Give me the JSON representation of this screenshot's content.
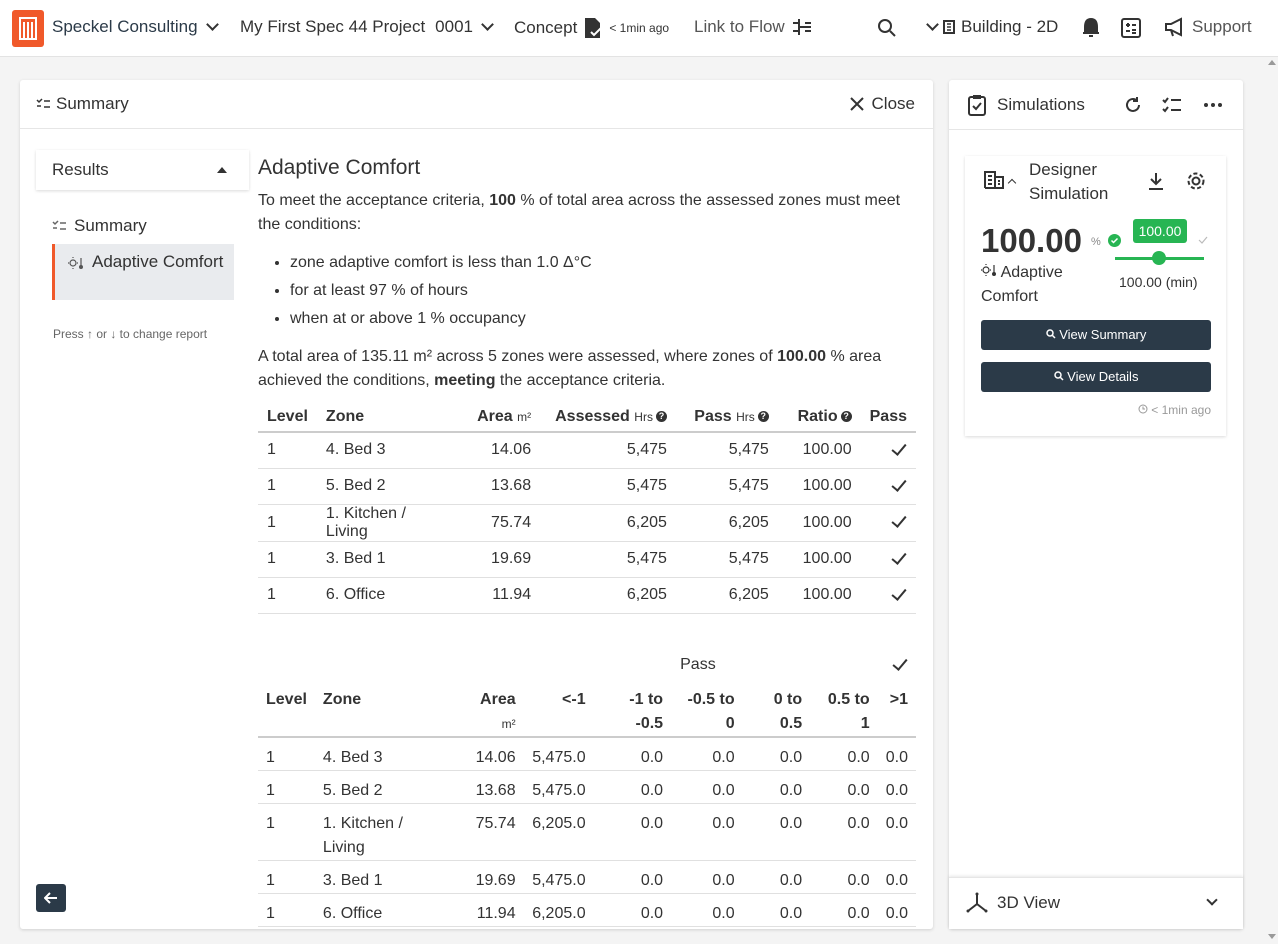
{
  "topbar": {
    "company": "Speckel Consulting",
    "project": "My First Spec 44 Project",
    "project_number": "0001",
    "stage": "Concept",
    "stage_time": "< 1min ago",
    "link_flow": "Link to Flow",
    "view": "Building - 2D",
    "support": "Support"
  },
  "main": {
    "header_title": "Summary",
    "close_label": "Close",
    "results_label": "Results",
    "nav": [
      {
        "label": "Summary"
      },
      {
        "label": "Adaptive Comfort"
      }
    ],
    "press_hint": "Press ↑ or ↓ to change report",
    "heading": "Adaptive Comfort",
    "intro_a": "To meet the acceptance criteria, ",
    "intro_pct": "100",
    "intro_b": " % of total area across the assessed zones must meet the conditions:",
    "conditions": [
      "zone adaptive comfort is less than 1.0 Δ°C",
      "for at least 97 % of hours",
      "when at or above 1 % occupancy"
    ],
    "summary_a": "A total area of 135.11 m² across 5 zones were assessed, where zones of ",
    "summary_pct": "100.00",
    "summary_b": " % area achieved the conditions, ",
    "summary_meeting": "meeting",
    "summary_c": " the acceptance criteria."
  },
  "table1": {
    "headers": {
      "level": "Level",
      "zone": "Zone",
      "area": "Area",
      "area_unit": "m²",
      "assessed": "Assessed",
      "assessed_unit": "Hrs",
      "pass": "Pass",
      "pass_unit": "Hrs",
      "ratio": "Ratio",
      "pass_col": "Pass"
    },
    "rows": [
      {
        "level": "1",
        "zone": "4. Bed 3",
        "area": "14.06",
        "assessed": "5,475",
        "pass": "5,475",
        "ratio": "100.00"
      },
      {
        "level": "1",
        "zone": "5. Bed 2",
        "area": "13.68",
        "assessed": "5,475",
        "pass": "5,475",
        "ratio": "100.00"
      },
      {
        "level": "1",
        "zone": "1. Kitchen / Living",
        "area": "75.74",
        "assessed": "6,205",
        "pass": "6,205",
        "ratio": "100.00"
      },
      {
        "level": "1",
        "zone": "3. Bed 1",
        "area": "19.69",
        "assessed": "5,475",
        "pass": "5,475",
        "ratio": "100.00"
      },
      {
        "level": "1",
        "zone": "6. Office",
        "area": "11.94",
        "assessed": "6,205",
        "pass": "6,205",
        "ratio": "100.00"
      }
    ]
  },
  "table2": {
    "pass_label": "Pass",
    "headers": {
      "level": "Level",
      "zone": "Zone",
      "area": "Area",
      "area_unit": "m²",
      "c1": "<-1",
      "c2": "-1 to -0.5",
      "c3": "-0.5 to 0",
      "c4": "0 to 0.5",
      "c5": "0.5 to 1",
      "c6": ">1"
    },
    "rows": [
      {
        "level": "1",
        "zone": "4. Bed 3",
        "area": "14.06",
        "c1": "5,475.0",
        "c2": "0.0",
        "c3": "0.0",
        "c4": "0.0",
        "c5": "0.0",
        "c6": "0.0"
      },
      {
        "level": "1",
        "zone": "5. Bed 2",
        "area": "13.68",
        "c1": "5,475.0",
        "c2": "0.0",
        "c3": "0.0",
        "c4": "0.0",
        "c5": "0.0",
        "c6": "0.0"
      },
      {
        "level": "1",
        "zone": "1. Kitchen / Living",
        "area": "75.74",
        "c1": "6,205.0",
        "c2": "0.0",
        "c3": "0.0",
        "c4": "0.0",
        "c5": "0.0",
        "c6": "0.0"
      },
      {
        "level": "1",
        "zone": "3. Bed 1",
        "area": "19.69",
        "c1": "5,475.0",
        "c2": "0.0",
        "c3": "0.0",
        "c4": "0.0",
        "c5": "0.0",
        "c6": "0.0"
      },
      {
        "level": "1",
        "zone": "6. Office",
        "area": "11.94",
        "c1": "6,205.0",
        "c2": "0.0",
        "c3": "0.0",
        "c4": "0.0",
        "c5": "0.0",
        "c6": "0.0"
      }
    ]
  },
  "side": {
    "title": "Simulations",
    "sim_title_line1": "Designer",
    "sim_title_line2": "Simulation",
    "value": "100.00",
    "value_unit": "%",
    "target_badge": "100.00",
    "target_min": "100.00 (min)",
    "metric": "Adaptive Comfort",
    "view_summary": "View Summary",
    "view_details": "View Details",
    "ago": "< 1min ago",
    "view3d": "3D View"
  },
  "colors": {
    "accent": "#f0592a",
    "dark": "#2b3a48",
    "success": "#27b553"
  }
}
